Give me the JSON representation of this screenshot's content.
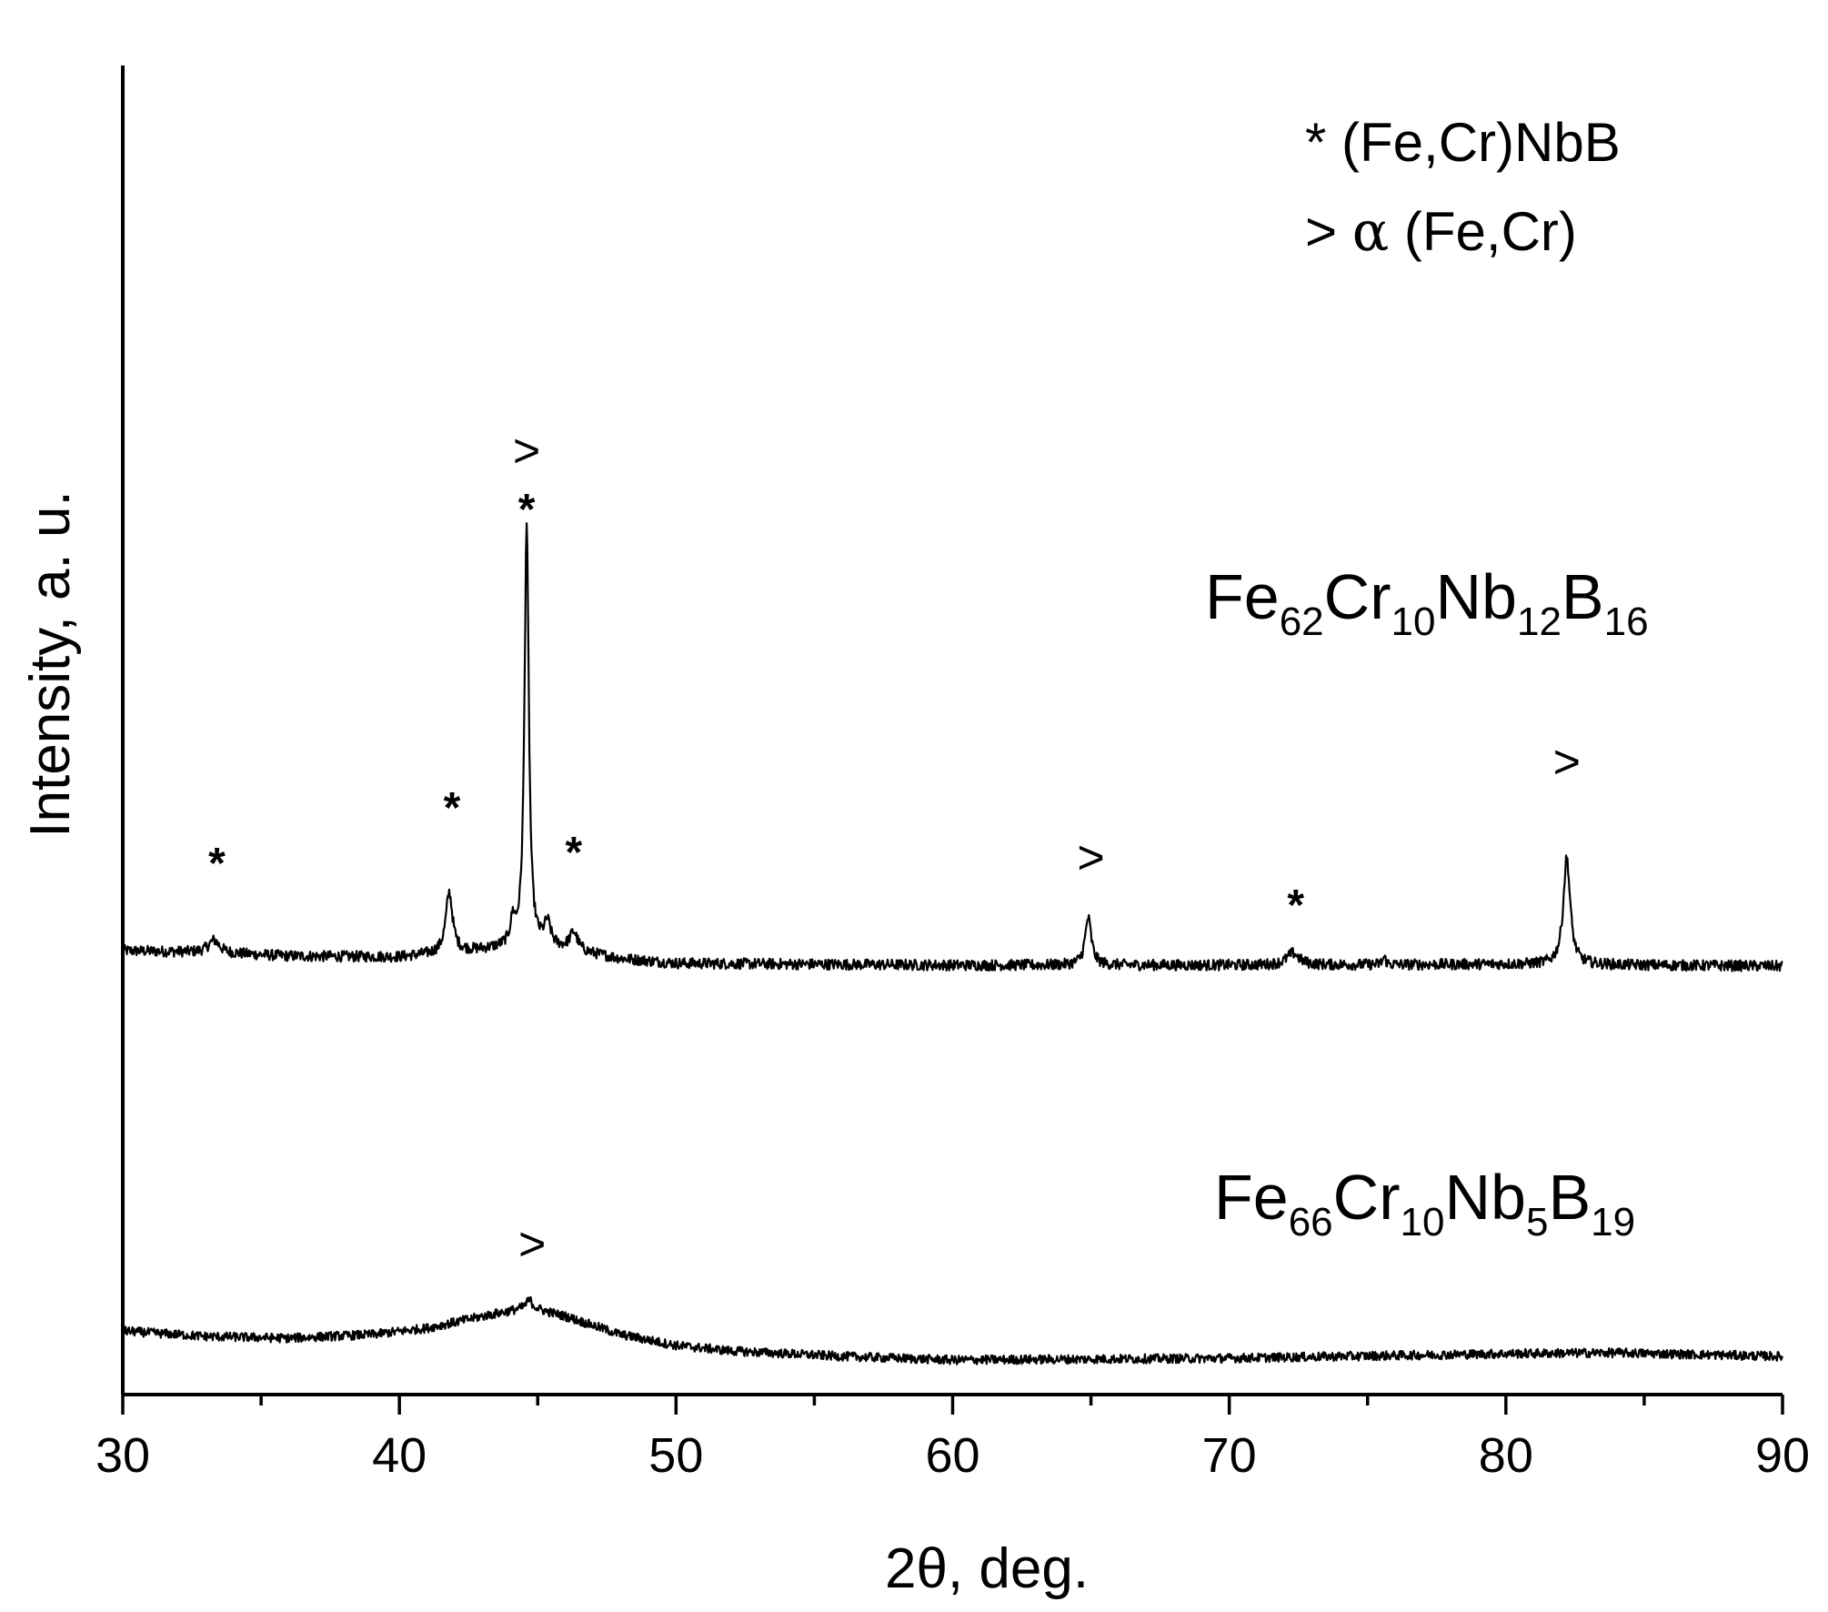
{
  "chart_data": {
    "type": "line",
    "title": "",
    "xlabel_prefix": "2",
    "xlabel_theta": "θ",
    "xlabel_suffix": ", deg.",
    "ylabel": "Intensity, a. u.",
    "xlim": [
      30,
      90
    ],
    "x_ticks": [
      30,
      40,
      50,
      60,
      70,
      80,
      90
    ],
    "x_tick_labels": [
      "30",
      "40",
      "50",
      "60",
      "70",
      "80",
      "90"
    ],
    "y_ticks_shown": false,
    "grid": false,
    "line_color": "#000000",
    "legend": {
      "placement": "top-right",
      "items": [
        {
          "symbol": "*",
          "phase": "(Fe,Cr)NbB"
        },
        {
          "symbol": ">",
          "greek": "α",
          "phase": "(Fe,Cr)"
        }
      ]
    },
    "series": [
      {
        "name_parts": [
          [
            "Fe",
            ""
          ],
          [
            "",
            "62"
          ],
          [
            "Cr",
            ""
          ],
          [
            "",
            "10"
          ],
          [
            "Nb",
            ""
          ],
          [
            "",
            "12"
          ],
          [
            "B",
            ""
          ],
          [
            "",
            "16"
          ]
        ],
        "baseline_points": [
          [
            30,
            105
          ],
          [
            33,
            103
          ],
          [
            36,
            99
          ],
          [
            40,
            98
          ],
          [
            42,
            103
          ],
          [
            44,
            108
          ],
          [
            46,
            106
          ],
          [
            48,
            96
          ],
          [
            50,
            91
          ],
          [
            55,
            90
          ],
          [
            60,
            89
          ],
          [
            70,
            89
          ],
          [
            80,
            90
          ],
          [
            90,
            88
          ]
        ],
        "peaks": [
          {
            "x": 33.3,
            "height": 14,
            "width": 0.35
          },
          {
            "x": 41.8,
            "height": 66,
            "width": 0.22
          },
          {
            "x": 44.1,
            "height": 26,
            "width": 0.15
          },
          {
            "x": 44.6,
            "height": 465,
            "width": 0.14
          },
          {
            "x": 45.35,
            "height": 26,
            "width": 0.22
          },
          {
            "x": 46.3,
            "height": 20,
            "width": 0.25
          },
          {
            "x": 64.9,
            "height": 52,
            "width": 0.2
          },
          {
            "x": 72.3,
            "height": 13,
            "width": 0.4
          },
          {
            "x": 75.6,
            "height": 8,
            "width": 0.1
          },
          {
            "x": 82.2,
            "height": 118,
            "width": 0.22
          }
        ],
        "noise": 6,
        "markers": [
          {
            "symbol": "*",
            "x": 33.4,
            "y": 185
          },
          {
            "symbol": "*",
            "x": 41.9,
            "y": 246
          },
          {
            "symbol": "*",
            "x": 44.6,
            "y": 574
          },
          {
            "symbol": ">",
            "x": 44.6,
            "y": 637
          },
          {
            "symbol": "*",
            "x": 46.3,
            "y": 197
          },
          {
            "symbol": ">",
            "x": 65.0,
            "y": 190
          },
          {
            "symbol": "*",
            "x": 72.4,
            "y": 139
          },
          {
            "symbol": ">",
            "x": 82.2,
            "y": 295
          }
        ]
      },
      {
        "name_parts": [
          [
            "Fe",
            ""
          ],
          [
            "",
            "66"
          ],
          [
            "Cr",
            ""
          ],
          [
            "",
            "10"
          ],
          [
            "Nb",
            ""
          ],
          [
            "",
            "5"
          ],
          [
            "B",
            ""
          ],
          [
            "",
            "19"
          ]
        ],
        "baseline_points": [
          [
            30,
            42
          ],
          [
            33,
            36
          ],
          [
            36,
            34
          ],
          [
            39,
            38
          ],
          [
            41,
            45
          ],
          [
            43,
            58
          ],
          [
            44.7,
            68
          ],
          [
            46,
            58
          ],
          [
            48,
            38
          ],
          [
            50,
            26
          ],
          [
            52,
            20
          ],
          [
            56,
            14
          ],
          [
            60,
            10
          ],
          [
            70,
            12
          ],
          [
            80,
            17
          ],
          [
            84,
            18
          ],
          [
            90,
            14
          ]
        ],
        "peaks": [
          {
            "x": 44.7,
            "height": 8,
            "width": 0.2
          }
        ],
        "noise": 5,
        "markers": [
          {
            "symbol": ">",
            "x": 44.8,
            "y": 120
          }
        ]
      }
    ]
  }
}
